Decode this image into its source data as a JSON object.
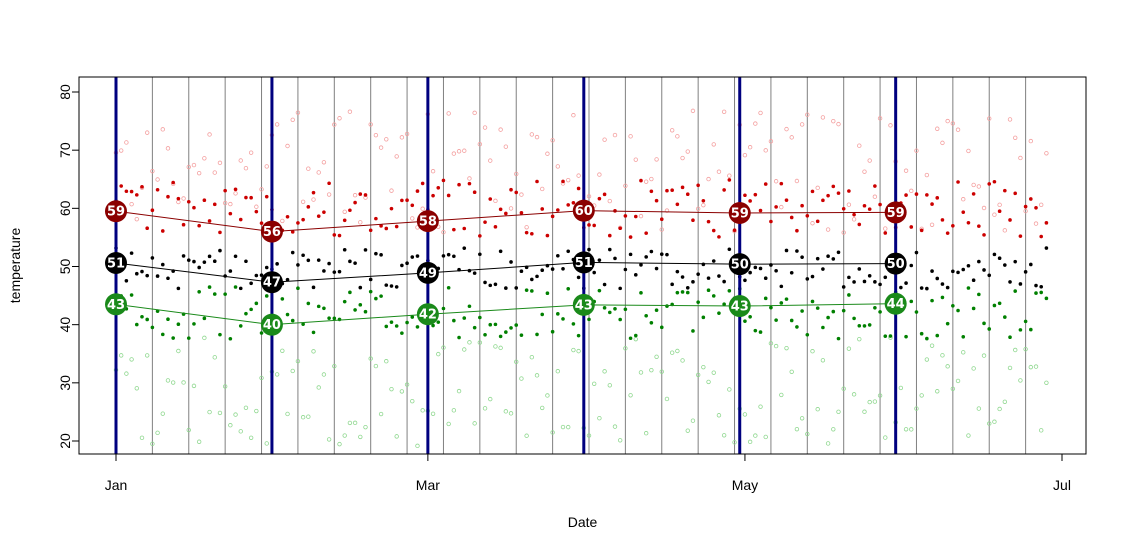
{
  "chart_data": {
    "type": "scatter",
    "title": "",
    "xlabel": "Date",
    "ylabel": "temperature",
    "x_range": [
      "2024-01-01",
      "2024-07-01"
    ],
    "ylim": [
      18,
      82
    ],
    "x_ticks": [
      {
        "label": "Jan",
        "date": "2024-01-01"
      },
      {
        "label": "Mar",
        "date": "2024-03-01"
      },
      {
        "label": "May",
        "date": "2024-05-01"
      },
      {
        "label": "Jul",
        "date": "2024-07-01"
      }
    ],
    "y_ticks": [
      20,
      30,
      40,
      50,
      60,
      70,
      80
    ],
    "grid": false,
    "week_lines": [
      "2024-01-08",
      "2024-01-15",
      "2024-01-22",
      "2024-01-29",
      "2024-02-05",
      "2024-02-12",
      "2024-02-19",
      "2024-02-26",
      "2024-03-04",
      "2024-03-11",
      "2024-03-18",
      "2024-03-25",
      "2024-04-01",
      "2024-04-08",
      "2024-04-15",
      "2024-04-22",
      "2024-04-29",
      "2024-05-06",
      "2024-05-13",
      "2024-05-20",
      "2024-05-27",
      "2024-06-03",
      "2024-06-10",
      "2024-06-17",
      "2024-06-24"
    ],
    "period_lines": [
      "2024-01-01",
      "2024-01-31",
      "2024-03-01",
      "2024-03-31",
      "2024-04-30",
      "2024-05-30"
    ],
    "colors": {
      "high": "#cc0000",
      "high_faint": "#f4a0a0",
      "mid": "#000000",
      "low": "#008000",
      "low_faint": "#90d890",
      "high_marker": "#8b0000",
      "mid_marker": "#000000",
      "low_marker": "#1a8a1a",
      "period_line": "#00007f",
      "week_line": "#808080"
    },
    "series": [
      {
        "key": "high",
        "x": [
          "2024-01-01",
          "2024-01-31",
          "2024-03-01",
          "2024-03-31",
          "2024-04-30",
          "2024-05-30"
        ],
        "values": [
          59.5,
          56.0,
          57.8,
          59.6,
          59.2,
          59.3
        ],
        "labels": [
          "59",
          "56",
          "58",
          "60",
          "59",
          "59"
        ]
      },
      {
        "key": "mid",
        "x": [
          "2024-01-01",
          "2024-01-31",
          "2024-03-01",
          "2024-03-31",
          "2024-04-30",
          "2024-05-30"
        ],
        "values": [
          50.6,
          47.3,
          48.9,
          50.7,
          50.4,
          50.5
        ],
        "labels": [
          "51",
          "47",
          "49",
          "51",
          "50",
          "50"
        ]
      },
      {
        "key": "low",
        "x": [
          "2024-01-01",
          "2024-01-31",
          "2024-03-01",
          "2024-03-31",
          "2024-04-30",
          "2024-05-30"
        ],
        "values": [
          43.5,
          40.0,
          41.8,
          43.4,
          43.2,
          43.6
        ],
        "labels": [
          "43",
          "40",
          "42",
          "43",
          "43",
          "44"
        ]
      }
    ]
  }
}
